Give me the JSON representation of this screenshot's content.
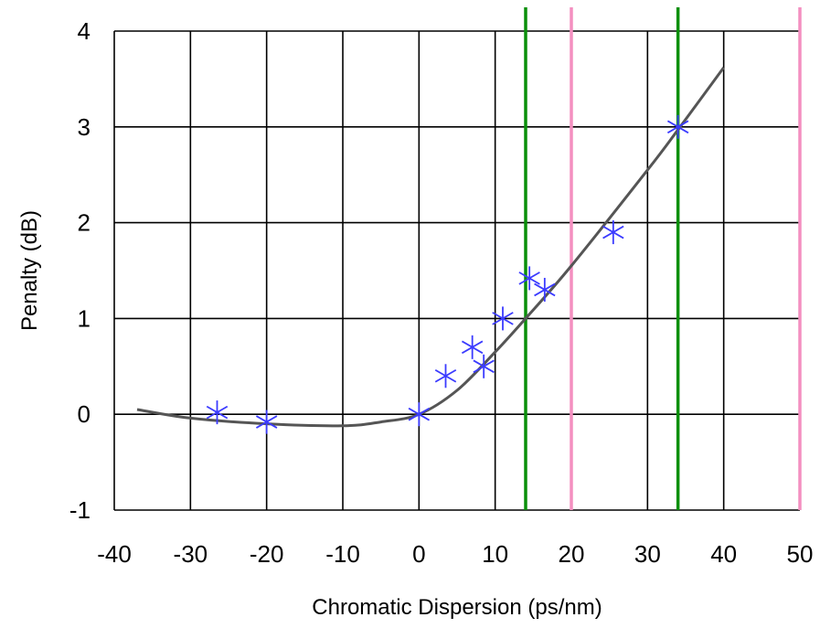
{
  "chart_data": {
    "type": "scatter",
    "title": "",
    "xlabel": "Chromatic Dispersion (ps/nm)",
    "ylabel": "Penalty (dB)",
    "xlim": [
      -40,
      50
    ],
    "ylim": [
      -1,
      4
    ],
    "xticks": [
      -40,
      -30,
      -20,
      -10,
      0,
      10,
      20,
      30,
      40,
      50
    ],
    "yticks": [
      -1,
      0,
      1,
      2,
      3,
      4
    ],
    "x_tick_labels": [
      "-40",
      "-30",
      "-20",
      "-10",
      "0",
      "10",
      "20",
      "30",
      "40",
      "50"
    ],
    "y_tick_labels": [
      "-1",
      "0",
      "1",
      "2",
      "3",
      "4"
    ],
    "grid": true,
    "series": [
      {
        "kind": "markers",
        "marker": "asterisk",
        "color": "#3b3bff",
        "points": [
          {
            "x": -26.5,
            "y": 0.02
          },
          {
            "x": -20.0,
            "y": -0.08
          },
          {
            "x": 0.0,
            "y": 0.0
          },
          {
            "x": 3.5,
            "y": 0.4
          },
          {
            "x": 7.0,
            "y": 0.7
          },
          {
            "x": 8.5,
            "y": 0.5
          },
          {
            "x": 11.0,
            "y": 1.0
          },
          {
            "x": 14.5,
            "y": 1.42
          },
          {
            "x": 16.5,
            "y": 1.3
          },
          {
            "x": 25.5,
            "y": 1.9
          },
          {
            "x": 34.0,
            "y": 3.0
          }
        ]
      },
      {
        "kind": "curve",
        "color": "#555555",
        "points": [
          {
            "x": -37,
            "y": 0.05
          },
          {
            "x": -30,
            "y": -0.04
          },
          {
            "x": -20,
            "y": -0.1
          },
          {
            "x": -10,
            "y": -0.12
          },
          {
            "x": -5,
            "y": -0.08
          },
          {
            "x": 0,
            "y": 0.0
          },
          {
            "x": 5,
            "y": 0.25
          },
          {
            "x": 10,
            "y": 0.65
          },
          {
            "x": 14,
            "y": 1.0
          },
          {
            "x": 20,
            "y": 1.55
          },
          {
            "x": 30,
            "y": 2.55
          },
          {
            "x": 34,
            "y": 2.97
          },
          {
            "x": 40,
            "y": 3.62
          }
        ]
      }
    ],
    "vertical_lines": [
      {
        "x": 14,
        "color": "#0a8f0a"
      },
      {
        "x": 20,
        "color": "#f48fc0"
      },
      {
        "x": 34,
        "color": "#0a8f0a"
      },
      {
        "x": 50,
        "color": "#f48fc0"
      }
    ]
  }
}
